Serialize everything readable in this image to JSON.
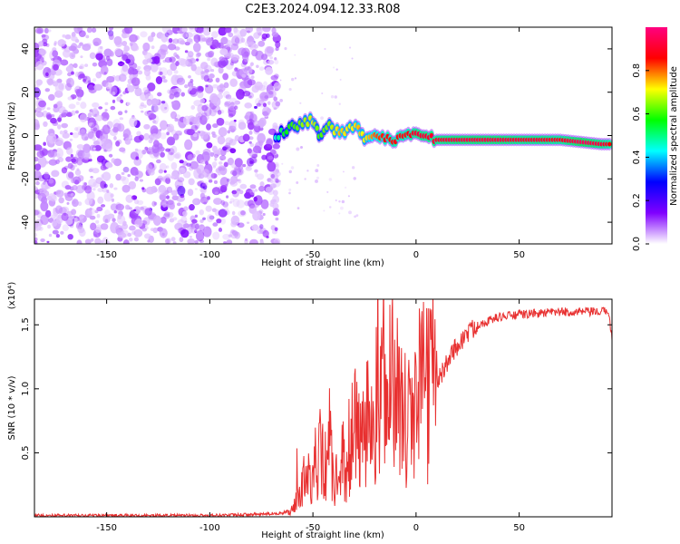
{
  "title": "C2E3.2024.094.12.33.R08",
  "colorbar": {
    "label": "Normalized spectral amplitude",
    "ticks": [
      "0.0",
      "0.2",
      "0.4",
      "0.6",
      "0.8"
    ],
    "tick_values": [
      0.0,
      0.2,
      0.4,
      0.6,
      0.8
    ],
    "range": [
      0,
      1
    ],
    "colormap": [
      "#ffffff",
      "#8000ff",
      "#0000ff",
      "#00ffff",
      "#00ff00",
      "#ffff00",
      "#ff0000",
      "#ff0080"
    ]
  },
  "chart_data": [
    {
      "type": "heatmap",
      "name": "spectrogram",
      "xlabel": "Height of straight line (km)",
      "ylabel": "Frequency (Hz)",
      "xlim": [
        -185,
        95
      ],
      "ylim": [
        -50,
        50
      ],
      "x_ticks": [
        "-150",
        "-100",
        "-50",
        "0",
        "50"
      ],
      "x_tick_values": [
        -150,
        -100,
        -50,
        0,
        50
      ],
      "y_ticks": [
        "-40",
        "-20",
        "0",
        "20",
        "40"
      ],
      "y_tick_values": [
        -40,
        -20,
        0,
        20,
        40
      ],
      "noise_region_x": [
        -185,
        -67
      ],
      "signal_band": [
        {
          "x": -68,
          "f": -1,
          "amp": 0.45
        },
        {
          "x": -64,
          "f": 2,
          "amp": 0.55
        },
        {
          "x": -60,
          "f": 4,
          "amp": 0.6
        },
        {
          "x": -55,
          "f": 6,
          "amp": 0.65
        },
        {
          "x": -50,
          "f": 7,
          "amp": 0.7
        },
        {
          "x": -47,
          "f": 1,
          "amp": 0.6
        },
        {
          "x": -42,
          "f": 4,
          "amp": 0.65
        },
        {
          "x": -37,
          "f": 1,
          "amp": 0.75
        },
        {
          "x": -32,
          "f": 3,
          "amp": 0.7
        },
        {
          "x": -28,
          "f": 5,
          "amp": 0.75
        },
        {
          "x": -25,
          "f": -3,
          "amp": 0.7
        },
        {
          "x": -20,
          "f": 0,
          "amp": 0.8
        },
        {
          "x": -15,
          "f": -1,
          "amp": 0.85
        },
        {
          "x": -10,
          "f": -2,
          "amp": 0.85
        },
        {
          "x": -5,
          "f": 1,
          "amp": 0.85
        },
        {
          "x": 0,
          "f": 2,
          "amp": 0.9
        },
        {
          "x": 5,
          "f": -1,
          "amp": 0.9
        },
        {
          "x": 10,
          "f": -2,
          "amp": 0.9
        },
        {
          "x": 20,
          "f": -2,
          "amp": 0.92
        },
        {
          "x": 30,
          "f": -2,
          "amp": 0.92
        },
        {
          "x": 40,
          "f": -2,
          "amp": 0.92
        },
        {
          "x": 50,
          "f": -2,
          "amp": 0.9
        },
        {
          "x": 60,
          "f": -2,
          "amp": 0.9
        },
        {
          "x": 70,
          "f": -2,
          "amp": 0.88
        },
        {
          "x": 80,
          "f": -3,
          "amp": 0.95
        },
        {
          "x": 90,
          "f": -4,
          "amp": 0.9
        },
        {
          "x": 95,
          "f": -4,
          "amp": 0.85
        }
      ]
    },
    {
      "type": "line",
      "name": "snr",
      "xlabel": "Height of straight line (km)",
      "ylabel": "SNR (10 * v/v)",
      "y_multiplier": "(x10⁴)",
      "xlim": [
        -185,
        95
      ],
      "ylim": [
        0,
        1.7
      ],
      "x_ticks": [
        "-150",
        "-100",
        "-50",
        "0",
        "50"
      ],
      "x_tick_values": [
        -150,
        -100,
        -50,
        0,
        50
      ],
      "y_ticks": [
        "0.5",
        "1.0",
        "1.5"
      ],
      "y_tick_values": [
        0.5,
        1.0,
        1.5
      ],
      "color": "#e83030",
      "x": [
        -185,
        -150,
        -100,
        -75,
        -65,
        -60,
        -57,
        -54,
        -51,
        -48,
        -45,
        -42,
        -39,
        -36,
        -33,
        -30,
        -27,
        -24,
        -21,
        -18,
        -15,
        -12,
        -9,
        -6,
        -3,
        0,
        3,
        6,
        9,
        12,
        15,
        18,
        21,
        24,
        27,
        30,
        40,
        50,
        60,
        70,
        80,
        85,
        90,
        93,
        95
      ],
      "y": [
        0.01,
        0.01,
        0.01,
        0.02,
        0.03,
        0.05,
        0.15,
        0.3,
        0.25,
        0.5,
        0.35,
        0.6,
        0.25,
        0.55,
        0.3,
        0.75,
        0.5,
        0.9,
        0.6,
        1.05,
        0.85,
        1.15,
        0.8,
        0.85,
        0.9,
        0.95,
        0.95,
        1.0,
        1.05,
        1.1,
        1.2,
        1.3,
        1.35,
        1.42,
        1.46,
        1.5,
        1.56,
        1.58,
        1.59,
        1.6,
        1.6,
        1.6,
        1.6,
        1.62,
        1.4
      ]
    }
  ]
}
